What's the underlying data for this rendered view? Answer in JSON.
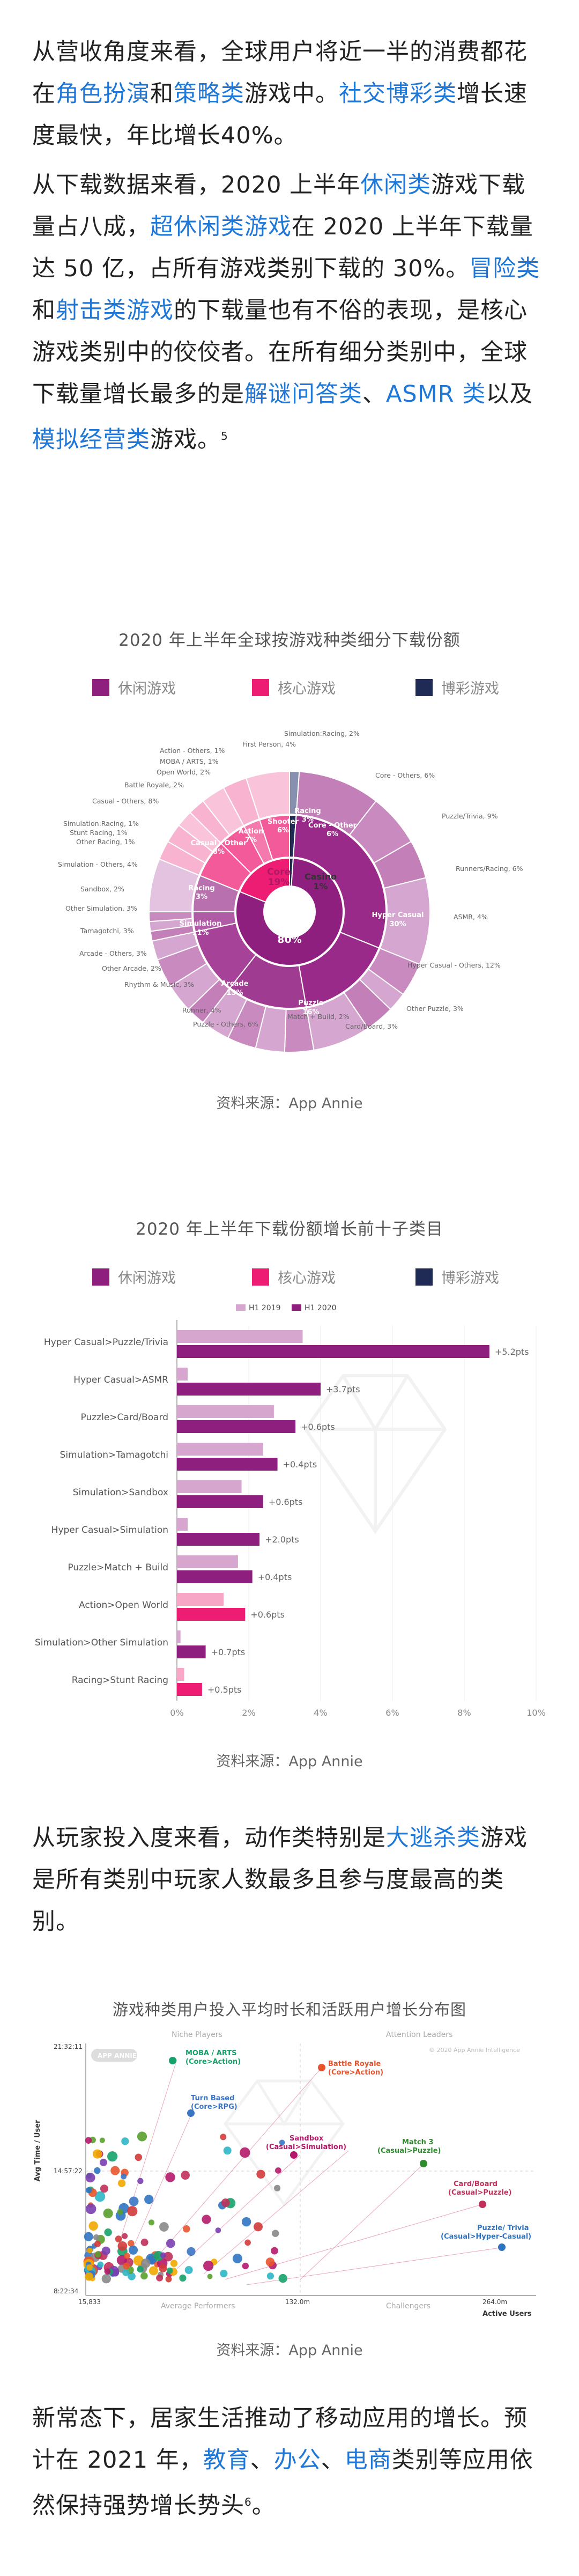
{
  "paragraph1": {
    "t1": "从营收角度来看，全球用户将近一半的消费都花在",
    "l1": "角色扮演",
    "t2": "和",
    "l2": "策略类",
    "t3": "游戏中。",
    "l3": "社交博彩类",
    "t4": "增长速度最快，年比增长40%。"
  },
  "paragraph2": {
    "t1": "从下载数据来看，2020 上半年",
    "l1": "休闲类",
    "t2": "游戏下载量占八成，",
    "l2": "超休闲类游戏",
    "t3": "在 2020 上半年下载量达 50 亿，占所有游戏类别下载的 30%。",
    "l3": "冒险类",
    "t4": "和",
    "l4": "射击类游戏",
    "t5": "的下载量也有不俗的表现，是核心游戏类别中的佼佼者。在所有细分类别中，全球下载量增长最多的是",
    "l5": "解谜问答类",
    "t6": "、",
    "l6": "ASMR 类",
    "t7": "以及",
    "l7": "模拟经营类",
    "t8": "游戏。",
    "sup": "5"
  },
  "figure1": {
    "title": "2020 年上半年全球按游戏种类细分下载份额",
    "legend": [
      "休闲游戏",
      "核心游戏",
      "博彩游戏"
    ],
    "legend_colors": [
      "#8e1f7e",
      "#ee1d74",
      "#1f2a55"
    ],
    "source": "资料来源：App Annie",
    "center": {
      "casual_name": "Casual",
      "casual_value": "80%",
      "core_name": "Core",
      "core_value": "19%",
      "casino_name": "Casino",
      "casino_value": "1%"
    },
    "middle_labels": {
      "hyper": "Hyper Casual",
      "hyper_v": "30%",
      "puzzle": "Puzzle",
      "puzzle_v": "16%",
      "arcade": "Arcade",
      "arcade_v": "13%",
      "simulation": "Simulation",
      "simulation_v": "11%",
      "racing": "Racing",
      "racing_v": "3%",
      "casual_other": "Casual - Other",
      "casual_other_v": "8%",
      "action": "Action",
      "action_v": "7%",
      "shooter": "Shooter",
      "shooter_v": "6%",
      "racing_core": "Racing",
      "racing_core_v": "3%",
      "core_other": "Core - Other",
      "core_other_v": "6%"
    },
    "outer_labels": [
      "Simulation:Racing, 2%",
      "First Person, 4%",
      "Action - Others, 1%",
      "MOBA / ARTS, 1%",
      "Open World, 2%",
      "Battle Royale, 2%",
      "Casual - Others, 8%",
      "Simulation:Racing, 1%",
      "Stunt Racing, 1%",
      "Other Racing, 1%",
      "Simulation - Others, 4%",
      "Sandbox, 2%",
      "Other Simulation, 3%",
      "Tamagotchi, 3%",
      "Arcade - Others, 3%",
      "Other Arcade, 2%",
      "Rhythm & Music, 3%",
      "Runner, 4%",
      "Puzzle - Others, 6%",
      "Match + Build, 2%",
      "Card/Board, 3%",
      "Other Puzzle, 3%",
      "Hyper Casual - Others, 12%",
      "ASMR, 4%",
      "Runners/Racing, 6%",
      "Puzzle/Trivia, 9%",
      "Core - Others, 6%"
    ]
  },
  "figure2": {
    "title": "2020 年上半年下载份额增长前十子类目",
    "legend": [
      "休闲游戏",
      "核心游戏",
      "博彩游戏"
    ],
    "legend_colors": [
      "#8e1f7e",
      "#ee1d74",
      "#1f2a55"
    ],
    "source": "资料来源：App Annie",
    "series_labels": [
      "H1 2019",
      "H1 2020"
    ],
    "series_colors": [
      "#d6a6cf",
      "#8e1f7e"
    ]
  },
  "chart_data": {
    "type": "bar",
    "orientation": "horizontal",
    "title": "2020 年上半年下载份额增长前十子类目",
    "categories": [
      "Hyper Casual>Puzzle/Trivia",
      "Hyper Casual>ASMR",
      "Puzzle>Card/Board",
      "Simulation>Tamagotchi",
      "Simulation>Sandbox",
      "Hyper Casual>Simulation",
      "Puzzle>Match + Build",
      "Action>Open World",
      "Simulation>Other Simulation",
      "Racing>Stunt Racing"
    ],
    "series": [
      {
        "name": "H1 2019",
        "values": [
          3.5,
          0.3,
          2.7,
          2.4,
          1.8,
          0.3,
          1.7,
          1.3,
          0.1,
          0.2
        ]
      },
      {
        "name": "H1 2020",
        "values": [
          8.7,
          4.0,
          3.3,
          2.8,
          2.4,
          2.3,
          2.1,
          1.9,
          0.8,
          0.7
        ]
      }
    ],
    "category_group": [
      "casual",
      "casual",
      "casual",
      "casual",
      "casual",
      "casual",
      "casual",
      "core",
      "casual",
      "core"
    ],
    "annotations": [
      "+5.2pts",
      "+3.7pts",
      "+0.6pts",
      "+0.4pts",
      "+0.6pts",
      "+2.0pts",
      "+0.4pts",
      "+0.6pts",
      "+0.7pts",
      "+0.5pts"
    ],
    "xticks": [
      "0%",
      "2%",
      "4%",
      "6%",
      "8%",
      "10%"
    ],
    "xlim": [
      0,
      10
    ],
    "legend": [
      "H1 2019",
      "H1 2020"
    ]
  },
  "paragraph3": {
    "t1": "从玩家投入度来看，动作类特别是",
    "l1": "大逃杀类",
    "t2": "游戏是所有类别中玩家人数最多且参与度最高的类别。"
  },
  "figure3": {
    "title": "游戏种类用户投入平均时长和活跃用户增长分布图",
    "quadrants": [
      "Niche Players",
      "Attention Leaders",
      "Average Performers",
      "Challengers"
    ],
    "copyright": "© 2020 App Annie Intelligence",
    "watermark": "APP ANNIE",
    "y_axis_title": "Avg Time / User",
    "x_axis_title": "Active Users",
    "y_ticks": [
      "21:32:11",
      "14:57:22",
      "8:22:34"
    ],
    "x_ticks": [
      "15,833",
      "132.0m",
      "264.0m"
    ],
    "highlights": [
      {
        "name": "MOBA / ARTS",
        "sub": "(Core>Action)",
        "color": "#16a36b"
      },
      {
        "name": "Battle Royale",
        "sub": "(Core>Action)",
        "color": "#e8542c"
      },
      {
        "name": "Turn Based",
        "sub": "(Core>RPG)",
        "color": "#3a76c4"
      },
      {
        "name": "Sandbox",
        "sub": "(Casual>Simulation)",
        "color": "#b5186a"
      },
      {
        "name": "Match 3",
        "sub": "(Casual>Puzzle)",
        "color": "#2e8b2e"
      },
      {
        "name": "Card/Board",
        "sub": "(Casual>Puzzle)",
        "color": "#c0305a"
      },
      {
        "name": "Puzzle/ Trivia",
        "sub": "(Casual>Hyper-Casual)",
        "color": "#2f74c0"
      }
    ],
    "source": "资料来源：App Annie"
  },
  "paragraph4": {
    "t1": "新常态下，居家生活推动了移动应用的增长。预计在 2021 年，",
    "l1": "教育",
    "t2": "、",
    "l2": "办公",
    "t3": "、",
    "l3": "电商",
    "t4": "类别等应用依然保持强势增长势头",
    "sup": "6",
    "t5": "。"
  }
}
